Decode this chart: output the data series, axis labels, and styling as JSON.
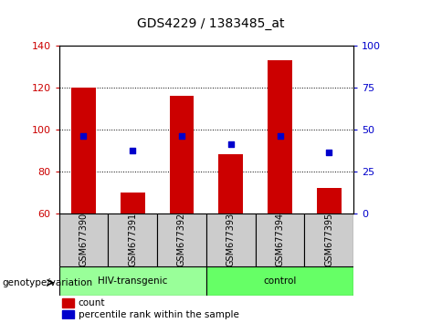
{
  "title": "GDS4229 / 1383485_at",
  "samples": [
    "GSM677390",
    "GSM677391",
    "GSM677392",
    "GSM677393",
    "GSM677394",
    "GSM677395"
  ],
  "counts": [
    120,
    70,
    116,
    88,
    133,
    72
  ],
  "percentile_ranks_left_scale": [
    97,
    90,
    97,
    93,
    97,
    89
  ],
  "ylim_left": [
    60,
    140
  ],
  "ylim_right": [
    0,
    100
  ],
  "yticks_left": [
    60,
    80,
    100,
    120,
    140
  ],
  "yticks_right": [
    0,
    25,
    50,
    75,
    100
  ],
  "bar_color": "#cc0000",
  "dot_color": "#0000cc",
  "bar_bottom": 60,
  "group1_label": "HIV-transgenic",
  "group2_label": "control",
  "group1_color": "#99ff99",
  "group2_color": "#66ff66",
  "group_label": "genotype/variation",
  "legend_count_label": "count",
  "legend_percentile_label": "percentile rank within the sample",
  "xlabel_area_color": "#cccccc"
}
